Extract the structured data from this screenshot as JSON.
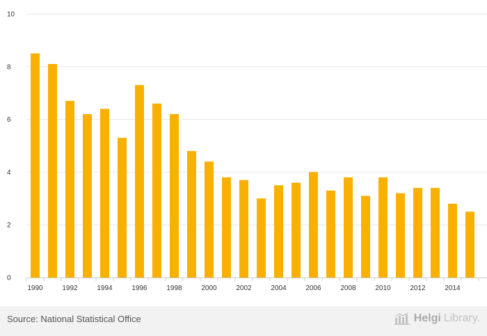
{
  "chart_data": {
    "type": "bar",
    "title": "",
    "xlabel": "",
    "ylabel": "",
    "categories": [
      "1990",
      "1991",
      "1992",
      "1993",
      "1994",
      "1995",
      "1996",
      "1997",
      "1998",
      "1999",
      "2000",
      "2001",
      "2002",
      "2003",
      "2004",
      "2005",
      "2006",
      "2007",
      "2008",
      "2009",
      "2010",
      "2011",
      "2012",
      "2013",
      "2014",
      "2015"
    ],
    "values": [
      8.5,
      8.1,
      6.7,
      6.2,
      6.4,
      5.3,
      7.3,
      6.6,
      6.2,
      4.8,
      4.4,
      3.8,
      3.7,
      3.0,
      3.5,
      3.6,
      4.0,
      3.3,
      3.8,
      3.1,
      3.8,
      3.2,
      3.4,
      3.4,
      2.8,
      2.5
    ],
    "x_tick_labels": [
      "1990",
      "1992",
      "1994",
      "1996",
      "1998",
      "2000",
      "2002",
      "2004",
      "2006",
      "2008",
      "2010",
      "2012",
      "2014"
    ],
    "y_ticks": [
      "0",
      "2",
      "4",
      "6",
      "8",
      "10"
    ],
    "ylim": [
      0,
      10
    ],
    "grid": true,
    "bar_color": "#f9b000",
    "grid_color": "#e6e6e6"
  },
  "footer": {
    "source": "Source: National Statistical Office",
    "brand_main": "Helgi",
    "brand_tail": "Library."
  },
  "icons": {
    "logo": "helgi-library-logo-icon"
  }
}
